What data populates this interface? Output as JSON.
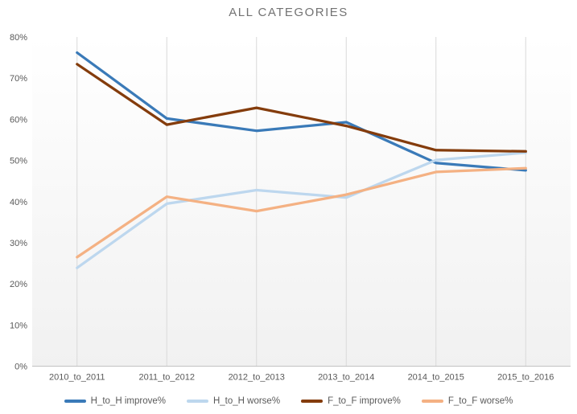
{
  "chart_data": {
    "type": "line",
    "title": "ALL CATEGORIES",
    "categories": [
      "2010_to_2011",
      "2011_to_2012",
      "2012_to_2013",
      "2013_to_2014",
      "2014_to_2015",
      "2015_to_2016"
    ],
    "series": [
      {
        "name": "H_to_H improve%",
        "color": "#3A7AB8",
        "values": [
          76.2,
          60.2,
          57.2,
          59.3,
          49.4,
          47.6
        ]
      },
      {
        "name": "H_to_H worse%",
        "color": "#BDD7EE",
        "values": [
          23.9,
          39.5,
          42.8,
          41.0,
          50.1,
          51.9
        ]
      },
      {
        "name": "F_to_F improve%",
        "color": "#843C0C",
        "values": [
          73.4,
          58.7,
          62.8,
          58.4,
          52.5,
          52.2
        ]
      },
      {
        "name": "F_to_F worse%",
        "color": "#F4B183",
        "values": [
          26.5,
          41.2,
          37.7,
          41.7,
          47.2,
          48.1
        ]
      }
    ],
    "xlabel": "",
    "ylabel": "",
    "ylim": [
      0,
      80
    ],
    "ytick_step": 10,
    "ytick_suffix": "%",
    "grid": "vertical-only",
    "legend_position": "bottom"
  },
  "colors": {
    "title_text": "#737373",
    "axis_text": "#595959",
    "gridline": "#d9d9d9",
    "axis_line": "#bfbfbf",
    "plot_bg_top": "#ffffff",
    "plot_bg_bottom": "#f1f1f1"
  }
}
